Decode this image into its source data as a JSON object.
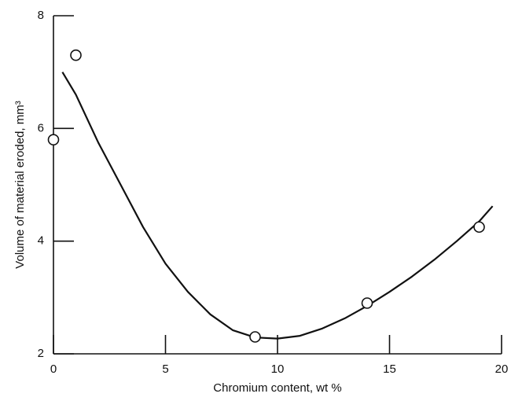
{
  "chart_data": {
    "type": "scatter",
    "xlabel": "Chromium content, wt %",
    "ylabel": "Volume of material eroded, mm³",
    "color": "#111111",
    "xlim": [
      0,
      20
    ],
    "xticks": [
      0,
      5,
      10,
      15,
      20
    ],
    "ylim": [
      2,
      8
    ],
    "yticks": [
      2,
      4,
      6,
      8
    ],
    "points": {
      "x": [
        0,
        1,
        9,
        14,
        19
      ],
      "y": [
        5.8,
        7.3,
        2.3,
        2.9,
        4.25
      ]
    },
    "curve": {
      "x": [
        0.4,
        1,
        2,
        3,
        4,
        5,
        6,
        7,
        8,
        9,
        10,
        11,
        12,
        13,
        14,
        15,
        16,
        17,
        18,
        19,
        19.6
      ],
      "y": [
        7.0,
        6.6,
        5.75,
        5.0,
        4.25,
        3.6,
        3.1,
        2.7,
        2.42,
        2.29,
        2.27,
        2.32,
        2.45,
        2.63,
        2.85,
        3.1,
        3.37,
        3.67,
        4.0,
        4.35,
        4.62
      ]
    }
  }
}
